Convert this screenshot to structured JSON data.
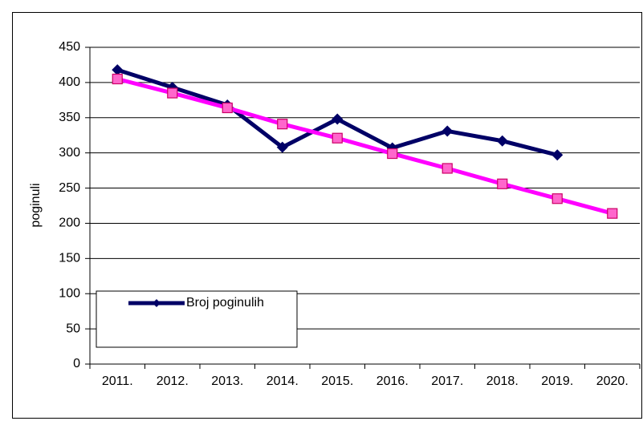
{
  "chart_data": {
    "type": "line",
    "categories": [
      "2011.",
      "2012.",
      "2013.",
      "2014.",
      "2015.",
      "2016.",
      "2017.",
      "2018.",
      "2019.",
      "2020."
    ],
    "series": [
      {
        "name": "Broj poginulih",
        "color": "#000066",
        "values": [
          418,
          393,
          368,
          308,
          348,
          307,
          331,
          317,
          297,
          null
        ]
      },
      {
        "color": "#ff00ff",
        "values": [
          405,
          385,
          364,
          341,
          321,
          299,
          278,
          256,
          235,
          214
        ]
      }
    ],
    "ylabel": "poginuli",
    "ylim": [
      0,
      450
    ],
    "yticks": [
      0,
      50,
      100,
      150,
      200,
      250,
      300,
      350,
      400,
      450
    ],
    "grid": true,
    "legend": "lower left"
  }
}
